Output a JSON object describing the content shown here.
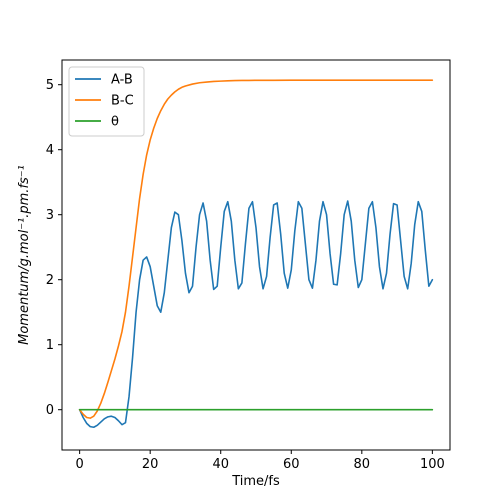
{
  "chart_data": {
    "type": "line",
    "xlabel": "Time/fs",
    "ylabel": "Momentum/g.mol⁻¹.pm.fs⁻¹",
    "xlim": [
      -5,
      105
    ],
    "ylim": [
      -0.62,
      5.38
    ],
    "xticks": [
      0,
      20,
      40,
      60,
      80,
      100
    ],
    "yticks": [
      0,
      1,
      2,
      3,
      4,
      5
    ],
    "grid": false,
    "legend_position": "top-left",
    "series": [
      {
        "name": "A-B",
        "color": "#1f77b4",
        "x": [
          0,
          1,
          2,
          3,
          4,
          5,
          6,
          7,
          8,
          9,
          10,
          11,
          12,
          13,
          14,
          15,
          16,
          17,
          18,
          19,
          20,
          21,
          22,
          23,
          24,
          25,
          26,
          27,
          28,
          29,
          30,
          31,
          32,
          33,
          34,
          35,
          36,
          37,
          38,
          39,
          40,
          41,
          42,
          43,
          44,
          45,
          46,
          47,
          48,
          49,
          50,
          51,
          52,
          53,
          54,
          55,
          56,
          57,
          58,
          59,
          60,
          61,
          62,
          63,
          64,
          65,
          66,
          67,
          68,
          69,
          70,
          71,
          72,
          73,
          74,
          75,
          76,
          77,
          78,
          79,
          80,
          81,
          82,
          83,
          84,
          85,
          86,
          87,
          88,
          89,
          90,
          91,
          92,
          93,
          94,
          95,
          96,
          97,
          98,
          99,
          100
        ],
        "y": [
          0,
          -0.12,
          -0.21,
          -0.26,
          -0.27,
          -0.24,
          -0.19,
          -0.14,
          -0.11,
          -0.1,
          -0.12,
          -0.17,
          -0.23,
          -0.2,
          0.2,
          0.8,
          1.5,
          2.0,
          2.3,
          2.35,
          2.2,
          1.9,
          1.6,
          1.5,
          1.8,
          2.3,
          2.8,
          3.04,
          3.0,
          2.6,
          2.1,
          1.8,
          1.9,
          2.5,
          3.0,
          3.18,
          2.9,
          2.3,
          1.85,
          1.9,
          2.5,
          3.05,
          3.2,
          2.9,
          2.3,
          1.86,
          1.95,
          2.55,
          3.1,
          3.2,
          2.8,
          2.2,
          1.86,
          2.05,
          2.65,
          3.15,
          3.18,
          2.7,
          2.1,
          1.87,
          2.15,
          2.75,
          3.2,
          3.1,
          2.55,
          2.0,
          1.87,
          2.3,
          2.9,
          3.2,
          3.0,
          2.4,
          1.93,
          1.92,
          2.4,
          3.0,
          3.21,
          2.9,
          2.3,
          1.88,
          2.0,
          2.55,
          3.1,
          3.2,
          2.8,
          2.2,
          1.86,
          2.1,
          2.7,
          3.17,
          3.15,
          2.6,
          2.05,
          1.86,
          2.25,
          2.85,
          3.2,
          3.05,
          2.45,
          1.9,
          2.0
        ]
      },
      {
        "name": "B-C",
        "color": "#ff7f0e",
        "x": [
          0,
          1,
          2,
          3,
          4,
          5,
          6,
          7,
          8,
          9,
          10,
          11,
          12,
          13,
          14,
          15,
          16,
          17,
          18,
          19,
          20,
          21,
          22,
          23,
          24,
          25,
          26,
          27,
          28,
          29,
          30,
          32,
          34,
          36,
          38,
          40,
          42,
          44,
          46,
          48,
          50,
          55,
          60,
          65,
          70,
          75,
          80,
          85,
          90,
          95,
          100
        ],
        "y": [
          0,
          -0.07,
          -0.12,
          -0.13,
          -0.1,
          -0.02,
          0.1,
          0.25,
          0.42,
          0.6,
          0.78,
          0.98,
          1.2,
          1.5,
          1.9,
          2.35,
          2.8,
          3.25,
          3.62,
          3.92,
          4.15,
          4.33,
          4.48,
          4.6,
          4.7,
          4.78,
          4.84,
          4.89,
          4.93,
          4.96,
          4.98,
          5.01,
          5.03,
          5.04,
          5.05,
          5.055,
          5.06,
          5.063,
          5.065,
          5.066,
          5.067,
          5.068,
          5.069,
          5.07,
          5.07,
          5.07,
          5.07,
          5.07,
          5.07,
          5.07,
          5.07
        ]
      },
      {
        "name": "θ",
        "color": "#2ca02c",
        "x": [
          0,
          100
        ],
        "y": [
          0,
          0
        ]
      }
    ]
  }
}
